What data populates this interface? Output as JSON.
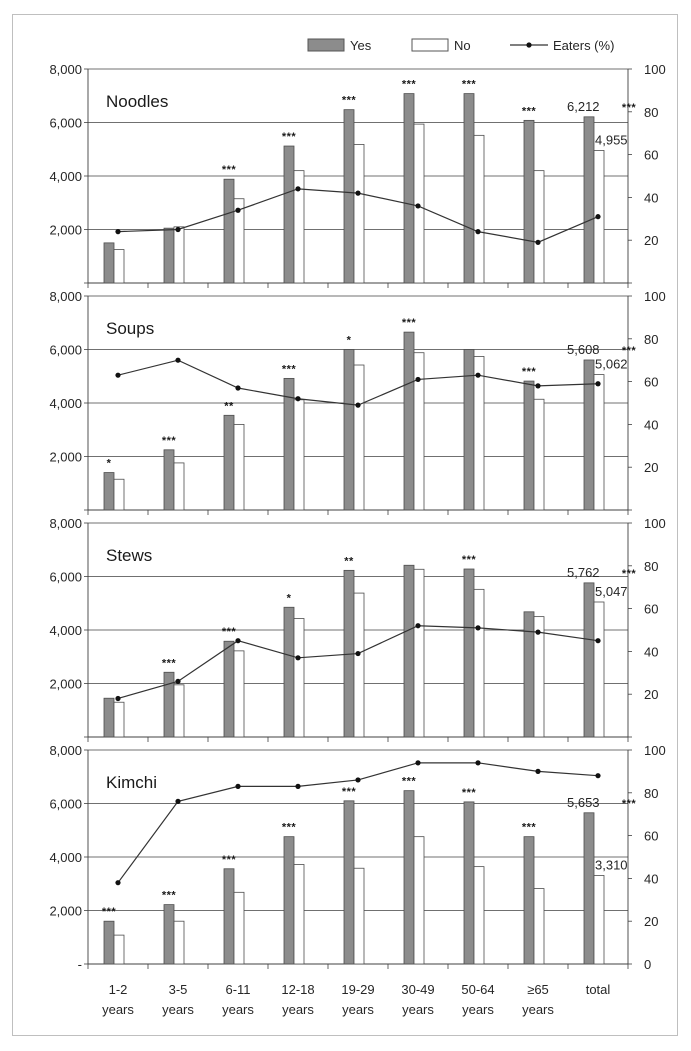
{
  "chart_data": {
    "type": "bar",
    "legend": {
      "position": "top-right",
      "items": [
        {
          "key": "yes",
          "label": "Yes",
          "color": "#8c8c8c"
        },
        {
          "key": "no",
          "label": "No",
          "color": "#ffffff"
        },
        {
          "key": "eaters",
          "label": "Eaters (%)",
          "color": "#333333"
        }
      ]
    },
    "categories": [
      [
        "1-2",
        "years"
      ],
      [
        "3-5",
        "years"
      ],
      [
        "6-11",
        "years"
      ],
      [
        "12-18",
        "years"
      ],
      [
        "19-29",
        "years"
      ],
      [
        "30-49",
        "years"
      ],
      [
        "50-64",
        "years"
      ],
      [
        "≥65",
        "years"
      ],
      [
        "total",
        ""
      ]
    ],
    "y_left": {
      "min": 0,
      "max": 8000,
      "ticks": [
        "",
        "2,000",
        "4,000",
        "6,000",
        "8,000"
      ],
      "bottom_tick_label_last_panel": "-"
    },
    "y_right": {
      "min": 0,
      "max": 100,
      "ticks": [
        "",
        "20",
        "40",
        "60",
        "80",
        "100"
      ],
      "bottom_tick_label_last_panel": "0"
    },
    "grid": true,
    "panels": [
      {
        "title": "Noodles",
        "series": [
          {
            "name": "Yes",
            "values": [
              1500,
              2050,
              3880,
              5120,
              6480,
              7080,
              7080,
              6080,
              6212
            ]
          },
          {
            "name": "No",
            "values": [
              1250,
              2100,
              3150,
              4200,
              5180,
              5940,
              5520,
              4200,
              4955
            ]
          },
          {
            "name": "Eaters (%)",
            "values": [
              24,
              25,
              34,
              44,
              42,
              36,
              24,
              19,
              31
            ]
          }
        ],
        "significance": [
          "",
          "",
          "***",
          "***",
          "***",
          "***",
          "***",
          "***",
          "***"
        ],
        "total_labels": {
          "yes": "6,212",
          "no": "4,955"
        }
      },
      {
        "title": "Soups",
        "series": [
          {
            "name": "Yes",
            "values": [
              1400,
              2250,
              3540,
              4920,
              6000,
              6650,
              6000,
              4820,
              5608
            ]
          },
          {
            "name": "No",
            "values": [
              1150,
              1760,
              3200,
              4120,
              5420,
              5880,
              5740,
              4140,
              5062
            ]
          },
          {
            "name": "Eaters (%)",
            "values": [
              63,
              70,
              57,
              52,
              49,
              61,
              63,
              58,
              59
            ]
          }
        ],
        "significance": [
          "*",
          "***",
          "**",
          "***",
          "*",
          "***",
          "",
          "***",
          "***"
        ],
        "total_labels": {
          "yes": "5,608",
          "no": "5,062"
        }
      },
      {
        "title": "Stews",
        "series": [
          {
            "name": "Yes",
            "values": [
              1450,
              2420,
              3580,
              4850,
              6230,
              6420,
              6280,
              4680,
              5762
            ]
          },
          {
            "name": "No",
            "values": [
              1300,
              1950,
              3220,
              4430,
              5380,
              6270,
              5520,
              4500,
              5047
            ]
          },
          {
            "name": "Eaters (%)",
            "values": [
              18,
              26,
              45,
              37,
              39,
              52,
              51,
              49,
              45
            ]
          }
        ],
        "significance": [
          "",
          "***",
          "***",
          "*",
          "**",
          "",
          "***",
          "",
          "***"
        ],
        "total_labels": {
          "yes": "5,762",
          "no": "5,047"
        }
      },
      {
        "title": "Kimchi",
        "series": [
          {
            "name": "Yes",
            "values": [
              1600,
              2220,
              3560,
              4760,
              6100,
              6480,
              6060,
              4760,
              5653
            ]
          },
          {
            "name": "No",
            "values": [
              1080,
              1600,
              2680,
              3720,
              3580,
              4760,
              3640,
              2820,
              3310
            ]
          },
          {
            "name": "Eaters (%)",
            "values": [
              38,
              76,
              83,
              83,
              86,
              94,
              94,
              90,
              88
            ]
          }
        ],
        "significance": [
          "***",
          "***",
          "***",
          "***",
          "***",
          "***",
          "***",
          "***",
          "***"
        ],
        "total_labels": {
          "yes": "5,653",
          "no": "3,310"
        }
      }
    ]
  }
}
